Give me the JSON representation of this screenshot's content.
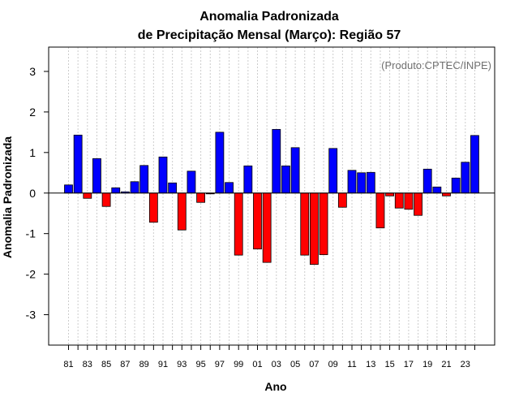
{
  "chart_data": {
    "type": "bar",
    "title_line1": "Anomalia Padronizada",
    "title_line2": "de Precipitação Mensal (Março): Região 57",
    "xlabel": "Ano",
    "ylabel": "Anomalia Padronizada",
    "credit": "(Produto:CPTEC/INPE)",
    "ylim": [
      -3.75,
      3.6
    ],
    "yticks": [
      -3,
      -2,
      -1,
      0,
      1,
      2,
      3
    ],
    "xtick_labels": [
      "81",
      "83",
      "85",
      "87",
      "89",
      "91",
      "93",
      "95",
      "97",
      "99",
      "01",
      "03",
      "05",
      "07",
      "09",
      "11",
      "13",
      "15",
      "17",
      "19",
      "21",
      "23"
    ],
    "categories": [
      "1981",
      "1982",
      "1983",
      "1984",
      "1985",
      "1986",
      "1987",
      "1988",
      "1989",
      "1990",
      "1991",
      "1992",
      "1993",
      "1994",
      "1995",
      "1996",
      "1997",
      "1998",
      "1999",
      "2000",
      "2001",
      "2002",
      "2003",
      "2004",
      "2005",
      "2006",
      "2007",
      "2008",
      "2009",
      "2010",
      "2011",
      "2012",
      "2013",
      "2014",
      "2015",
      "2016",
      "2017",
      "2018",
      "2019",
      "2020",
      "2021",
      "2022",
      "2023",
      "2024"
    ],
    "values": [
      0.2,
      1.43,
      -0.13,
      0.85,
      -0.33,
      0.13,
      0.03,
      0.28,
      0.68,
      -0.72,
      0.89,
      0.25,
      -0.91,
      0.54,
      -0.23,
      -0.02,
      1.5,
      0.26,
      -1.53,
      0.67,
      -1.38,
      -1.71,
      1.57,
      0.67,
      1.12,
      -1.53,
      -1.76,
      -1.52,
      1.1,
      -0.35,
      0.56,
      0.5,
      0.51,
      -0.86,
      -0.07,
      -0.37,
      -0.4,
      -0.55,
      0.59,
      0.15,
      -0.07,
      0.37,
      0.76,
      1.42
    ],
    "colors": {
      "positive": "#0000ff",
      "negative": "#ff0000",
      "grid": "#cccccc",
      "axis": "#000000"
    },
    "grid": true
  }
}
